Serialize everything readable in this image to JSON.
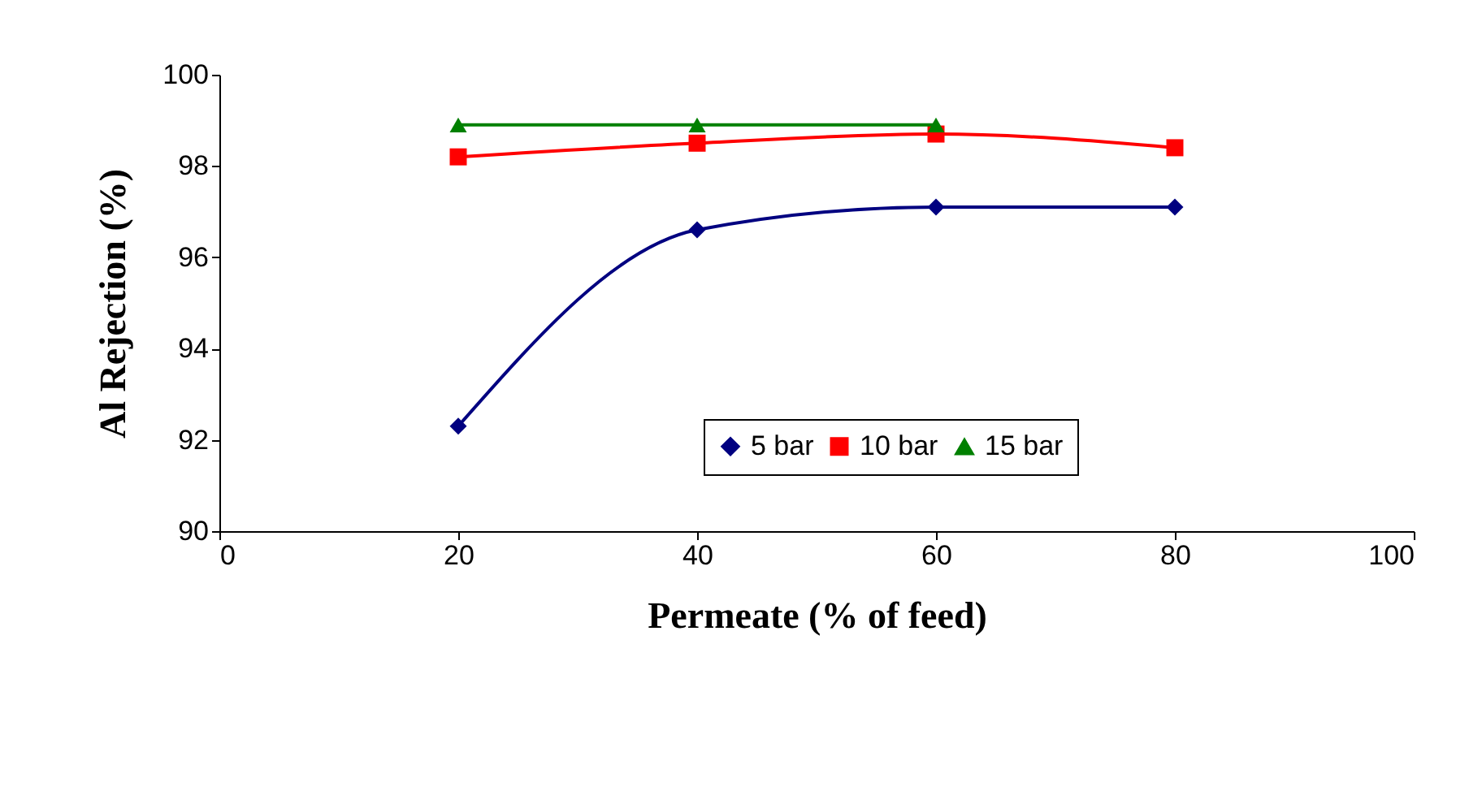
{
  "chart_data": {
    "type": "line",
    "xlabel": "Permeate (% of feed)",
    "ylabel": "Al Rejection (%)",
    "x": [
      20,
      40,
      60,
      80
    ],
    "series": [
      {
        "name": "5 bar",
        "color": "#000080",
        "marker": "diamond",
        "values": [
          92.3,
          96.6,
          97.1,
          97.1
        ]
      },
      {
        "name": "10 bar",
        "color": "#ff0000",
        "marker": "square",
        "values": [
          98.2,
          98.5,
          98.7,
          98.4
        ]
      },
      {
        "name": "15 bar",
        "color": "#008000",
        "marker": "triangle",
        "values": [
          98.9,
          98.9,
          98.9,
          null
        ]
      }
    ],
    "xlim": [
      0,
      100
    ],
    "xticks": [
      0,
      20,
      40,
      60,
      80,
      100
    ],
    "ylim": [
      90,
      100
    ],
    "yticks": [
      90,
      92,
      94,
      96,
      98,
      100
    ],
    "grid": false,
    "legend": "bottom right",
    "line_style": "solid"
  }
}
